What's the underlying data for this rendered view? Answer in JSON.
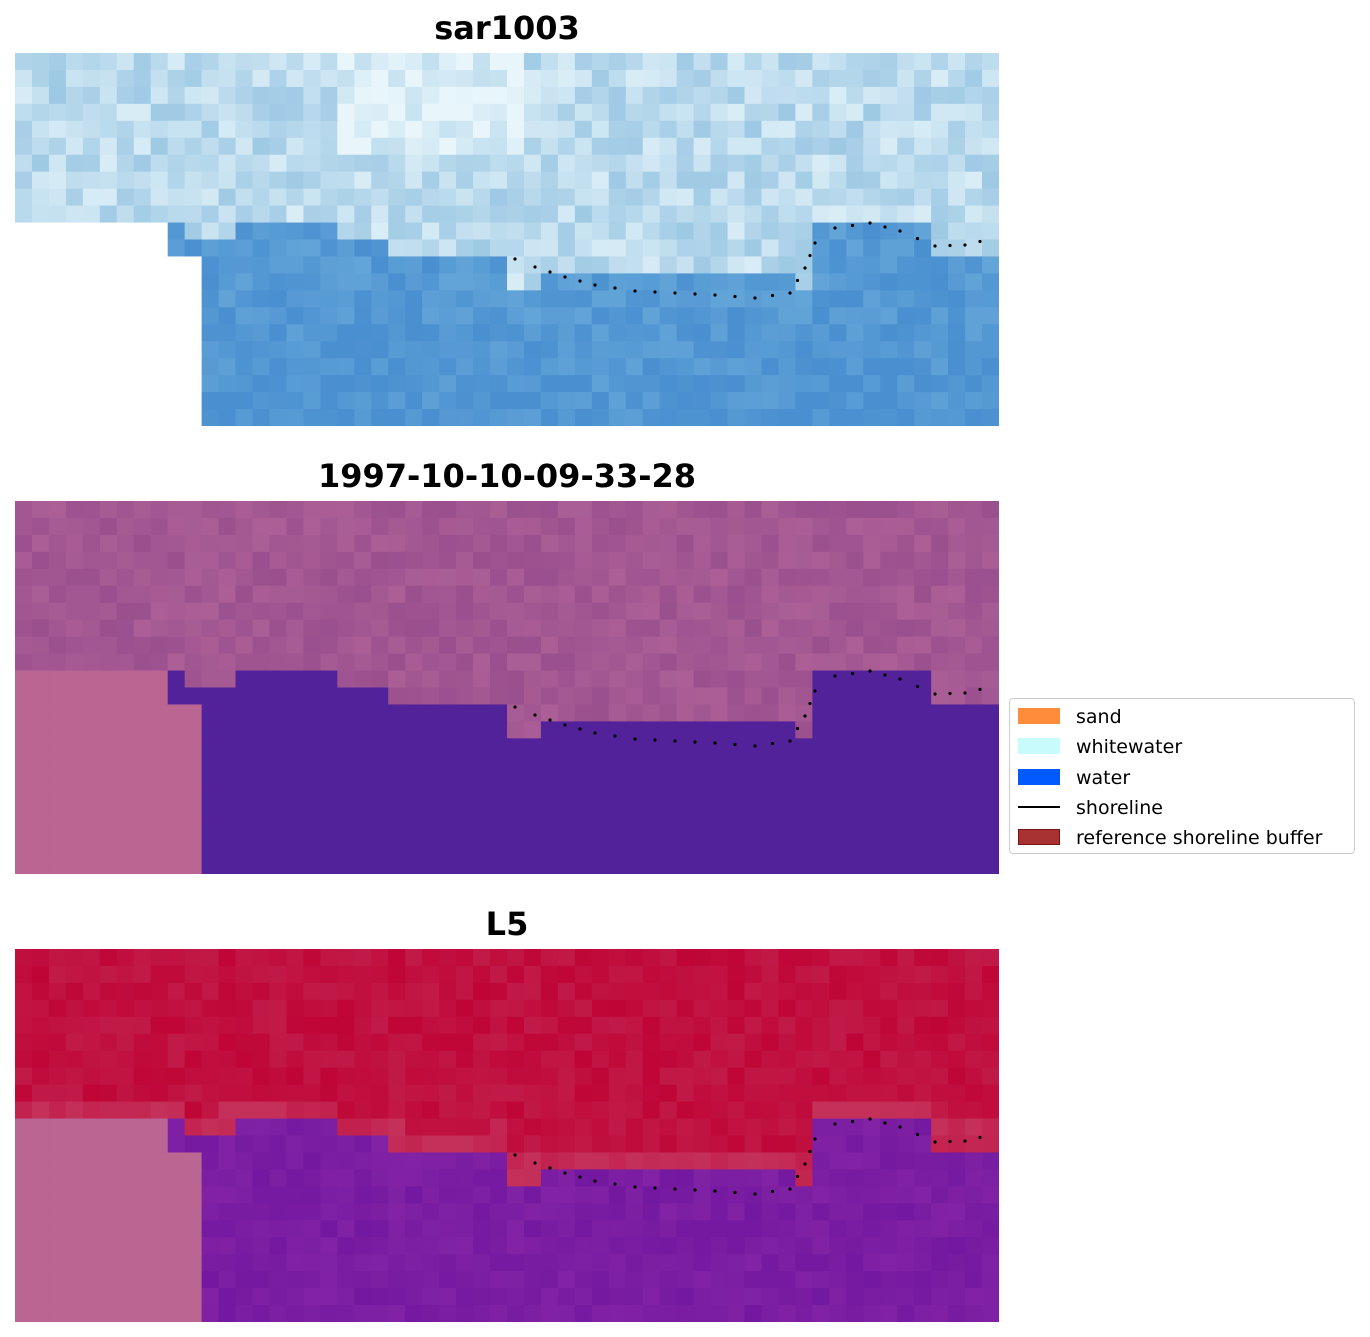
{
  "panels": [
    {
      "title": "sar1003",
      "style": "rgb"
    },
    {
      "title": "1997-10-10-09-33-28",
      "style": "classified"
    },
    {
      "title": "L5",
      "style": "ndwi"
    }
  ],
  "legend": {
    "items": [
      {
        "label": "sand",
        "color": "#ff8c3a",
        "kind": "patch"
      },
      {
        "label": "whitewater",
        "color": "#c8fcfc",
        "kind": "patch"
      },
      {
        "label": "water",
        "color": "#005aff",
        "kind": "patch"
      },
      {
        "label": "shoreline",
        "color": "#000000",
        "kind": "line"
      },
      {
        "label": "reference shoreline buffer",
        "color": "#a83232",
        "kind": "patch"
      }
    ]
  },
  "colors": {
    "nodata": "#ffffff",
    "classified_land": "#9a4f8e",
    "classified_water": "#52229a",
    "masked_fill": "#bb6593",
    "ndwi_land": "#bf0536",
    "ndwi_water": "#7318a0",
    "shoreline_dots": "#000000"
  }
}
